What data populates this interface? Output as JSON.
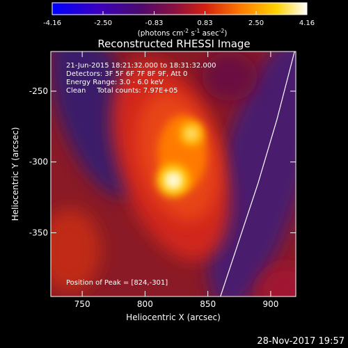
{
  "colorbar": {
    "ticks": [
      "-4.16",
      "-2.50",
      "-0.83",
      "0.83",
      "2.50",
      "4.16"
    ],
    "tick_values": [
      -4.16,
      -2.5,
      -0.83,
      0.83,
      2.5,
      4.16
    ],
    "range": [
      -4.16,
      4.16
    ],
    "colormap": "red-temperature"
  },
  "labels": {
    "units_base": "(photons cm",
    "units_m2": "-2",
    "units_s": " s",
    "units_m1": "-1",
    "units_asec": " asec",
    "units_m2b": "-2",
    "units_close": ")",
    "title": "Reconstructed RHESSI Image",
    "xlabel": "Heliocentric X (arcsec)",
    "ylabel": "Heliocentric Y (arcsec)",
    "footer": "28-Nov-2017 19:57"
  },
  "info": {
    "time": "21-Jun-2015 18:21:32.000 to 18:31:32.000",
    "detectors": "Detectors: 3F 5F 6F 7F 8F 9F, Att 0",
    "energy": "Energy Range: 3.0 - 6.0 keV",
    "clean": "Clean     Total counts: 7.97E+05",
    "peak": "Position of Peak = [824,-301]"
  },
  "chart_data": {
    "type": "heatmap",
    "title": "Reconstructed RHESSI Image",
    "xlabel": "Heliocentric X (arcsec)",
    "ylabel": "Heliocentric Y (arcsec)",
    "xlim": [
      725,
      920
    ],
    "ylim": [
      -395,
      -222
    ],
    "xticks": [
      750,
      800,
      850,
      900
    ],
    "yticks": [
      -250,
      -300,
      -350
    ],
    "xtick_labels": [
      "750",
      "800",
      "850",
      "900"
    ],
    "ytick_labels": [
      "-250",
      "-300",
      "-350"
    ],
    "color_range": [
      -4.16,
      4.16
    ],
    "sources": [
      {
        "x": 824,
        "y": -301,
        "peak": 4.16
      },
      {
        "x": 838,
        "y": -265,
        "peak": 2.8
      }
    ],
    "limb_curve": [
      [
        919,
        -222
      ],
      [
        905,
        -270
      ],
      [
        890,
        -315
      ],
      [
        875,
        -355
      ],
      [
        860,
        -395
      ]
    ],
    "peak_position": [
      824,
      -301
    ]
  }
}
